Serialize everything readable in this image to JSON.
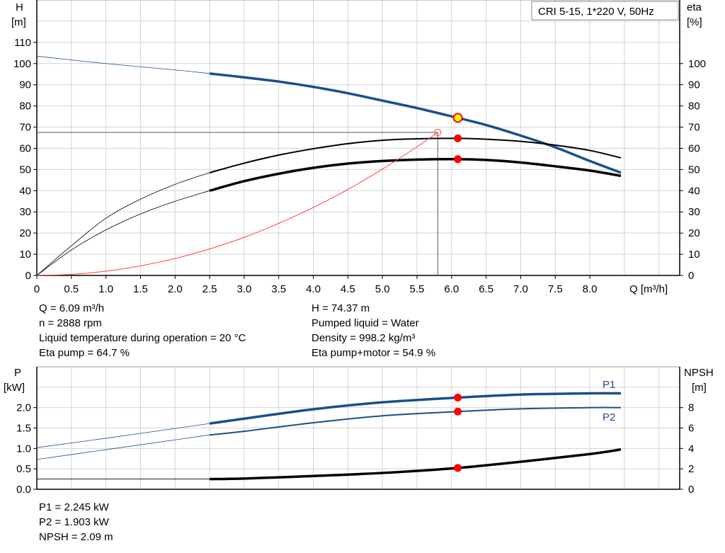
{
  "chart_data": [
    {
      "type": "line",
      "legend_box": "CRI 5-15, 1*220 V, 50Hz",
      "xlabel": "Q [m³/h]",
      "ylabel_left": [
        "H",
        "[m]"
      ],
      "ylabel_right": [
        "eta",
        "[%]"
      ],
      "xlim": [
        0,
        9.3
      ],
      "ylim_left": [
        0,
        130
      ],
      "ylim_right": [
        0,
        130
      ],
      "x_ticks": [
        "0",
        "0.5",
        "1.0",
        "1.5",
        "2.0",
        "2.5",
        "3.0",
        "3.5",
        "4.0",
        "4.5",
        "5.0",
        "5.5",
        "6.0",
        "6.5",
        "7.0",
        "7.5",
        "8.0"
      ],
      "y_ticks_left": [
        "0",
        "10",
        "20",
        "30",
        "40",
        "50",
        "60",
        "70",
        "80",
        "90",
        "100",
        "110"
      ],
      "y_ticks_right": [
        "0",
        "10",
        "20",
        "30",
        "40",
        "50",
        "60",
        "70",
        "80",
        "90",
        "100"
      ],
      "grid": true,
      "series": [
        {
          "key": "H",
          "axis": "left",
          "color": "#1a4f8a",
          "thick_from": 2.5,
          "width": 3.5,
          "points": [
            [
              0,
              103.5
            ],
            [
              1,
              100
            ],
            [
              2,
              97
            ],
            [
              2.5,
              95.3
            ],
            [
              3,
              93.5
            ],
            [
              3.5,
              91.5
            ],
            [
              4,
              89
            ],
            [
              4.5,
              86
            ],
            [
              5,
              82.5
            ],
            [
              5.5,
              79
            ],
            [
              6.09,
              74.37
            ],
            [
              6.5,
              71
            ],
            [
              7,
              66
            ],
            [
              7.5,
              60.5
            ],
            [
              8,
              54
            ],
            [
              8.45,
              48.5
            ]
          ]
        },
        {
          "key": "eta_pump",
          "axis": "right",
          "color": "#000000",
          "thick_from": 2.5,
          "width": 2,
          "points": [
            [
              0,
              0
            ],
            [
              0.5,
              14
            ],
            [
              1,
              27
            ],
            [
              1.5,
              36
            ],
            [
              2,
              43
            ],
            [
              2.5,
              48.5
            ],
            [
              3,
              53
            ],
            [
              3.5,
              56.8
            ],
            [
              4,
              59.8
            ],
            [
              4.5,
              62.2
            ],
            [
              5,
              63.8
            ],
            [
              5.5,
              64.5
            ],
            [
              6.09,
              64.7
            ],
            [
              6.5,
              64.3
            ],
            [
              7,
              63.3
            ],
            [
              7.5,
              61.5
            ],
            [
              8,
              59
            ],
            [
              8.45,
              55.5
            ]
          ]
        },
        {
          "key": "eta_pump_motor",
          "axis": "right",
          "color": "#000000",
          "thick_from": 2.5,
          "width": 3.5,
          "points": [
            [
              0,
              0
            ],
            [
              0.5,
              12
            ],
            [
              1,
              21.5
            ],
            [
              1.5,
              29
            ],
            [
              2,
              35
            ],
            [
              2.5,
              40
            ],
            [
              3,
              44.5
            ],
            [
              3.5,
              48
            ],
            [
              4,
              50.8
            ],
            [
              4.5,
              52.8
            ],
            [
              5,
              54
            ],
            [
              5.5,
              54.7
            ],
            [
              6.09,
              54.9
            ],
            [
              6.5,
              54.5
            ],
            [
              7,
              53.3
            ],
            [
              7.5,
              51.5
            ],
            [
              8,
              49.5
            ],
            [
              8.45,
              47
            ]
          ]
        },
        {
          "key": "system",
          "axis": "left",
          "color": "#ff4040",
          "thick_from": 99,
          "width": 1,
          "points": [
            [
              0,
              0
            ],
            [
              0.5,
              0.5
            ],
            [
              1,
              2
            ],
            [
              1.5,
              4.5
            ],
            [
              2,
              8
            ],
            [
              2.5,
              12.5
            ],
            [
              3,
              18
            ],
            [
              3.5,
              24.6
            ],
            [
              4,
              32.1
            ],
            [
              4.5,
              40.6
            ],
            [
              5,
              50.2
            ],
            [
              5.5,
              60.7
            ],
            [
              5.8,
              67.5
            ]
          ]
        }
      ],
      "duty_point": {
        "q": 5.8,
        "h": 67.5
      },
      "operating_points": [
        {
          "q": 6.09,
          "v": 74.37,
          "axis": "left",
          "color": "#ffff00"
        },
        {
          "q": 6.09,
          "v": 64.7,
          "axis": "right",
          "color": "#ff0000"
        },
        {
          "q": 6.09,
          "v": 54.9,
          "axis": "right",
          "color": "#ff0000"
        }
      ]
    },
    {
      "type": "line",
      "ylabel_left": [
        "P",
        "[kW]"
      ],
      "ylabel_right": [
        "NPSH",
        "[m]"
      ],
      "xlim": [
        0,
        9.3
      ],
      "ylim_left": [
        0,
        2.48
      ],
      "ylim_right": [
        0,
        9.92
      ],
      "y_ticks_left": [
        "0.0",
        "0.5",
        "1.0",
        "1.5",
        "2.0"
      ],
      "y_ticks_right": [
        "0",
        "2",
        "4",
        "6",
        "8"
      ],
      "grid": true,
      "series": [
        {
          "key": "P1",
          "name": "P1",
          "axis": "left",
          "color": "#1a4f8a",
          "thick_from": 2.5,
          "width": 3.5,
          "points": [
            [
              0,
              1.02
            ],
            [
              1,
              1.25
            ],
            [
              2,
              1.49
            ],
            [
              2.5,
              1.61
            ],
            [
              3,
              1.73
            ],
            [
              4,
              1.96
            ],
            [
              5,
              2.13
            ],
            [
              6.09,
              2.245
            ],
            [
              7,
              2.32
            ],
            [
              8,
              2.35
            ],
            [
              8.45,
              2.35
            ]
          ]
        },
        {
          "key": "P2",
          "name": "P2",
          "axis": "left",
          "color": "#1a4f8a",
          "thick_from": 2.5,
          "width": 2,
          "points": [
            [
              0,
              0.73
            ],
            [
              1,
              0.97
            ],
            [
              2,
              1.21
            ],
            [
              2.5,
              1.33
            ],
            [
              3,
              1.42
            ],
            [
              4,
              1.63
            ],
            [
              5,
              1.8
            ],
            [
              6.09,
              1.903
            ],
            [
              7,
              1.97
            ],
            [
              8,
              2.0
            ],
            [
              8.45,
              2.0
            ]
          ]
        },
        {
          "key": "NPSH",
          "axis": "right",
          "color": "#000000",
          "thick_from": 2.5,
          "width": 3.5,
          "points": [
            [
              0,
              1.0
            ],
            [
              1,
              1.0
            ],
            [
              2,
              1.0
            ],
            [
              2.5,
              1.0
            ],
            [
              3,
              1.05
            ],
            [
              4,
              1.3
            ],
            [
              5,
              1.6
            ],
            [
              6.09,
              2.09
            ],
            [
              7,
              2.7
            ],
            [
              8,
              3.45
            ],
            [
              8.45,
              3.9
            ]
          ]
        }
      ],
      "operating_points": [
        {
          "q": 6.09,
          "v": 2.245,
          "axis": "left",
          "color": "#ff0000"
        },
        {
          "q": 6.09,
          "v": 1.903,
          "axis": "left",
          "color": "#ff0000"
        },
        {
          "q": 6.09,
          "v": 2.09,
          "axis": "right",
          "color": "#ff0000"
        }
      ]
    }
  ],
  "readouts_top_left": [
    "Q = 6.09 m³/h",
    "n = 2888 rpm",
    "Liquid temperature during operation = 20 °C",
    "Eta pump = 64.7 %"
  ],
  "readouts_top_right": [
    "H = 74.37 m",
    "Pumped liquid = Water",
    "Density = 998.2 kg/m³",
    "Eta pump+motor = 54.9 %"
  ],
  "readouts_bottom": [
    "P1 = 2.245 kW",
    "P2 = 1.903 kW",
    "NPSH = 2.09 m"
  ]
}
